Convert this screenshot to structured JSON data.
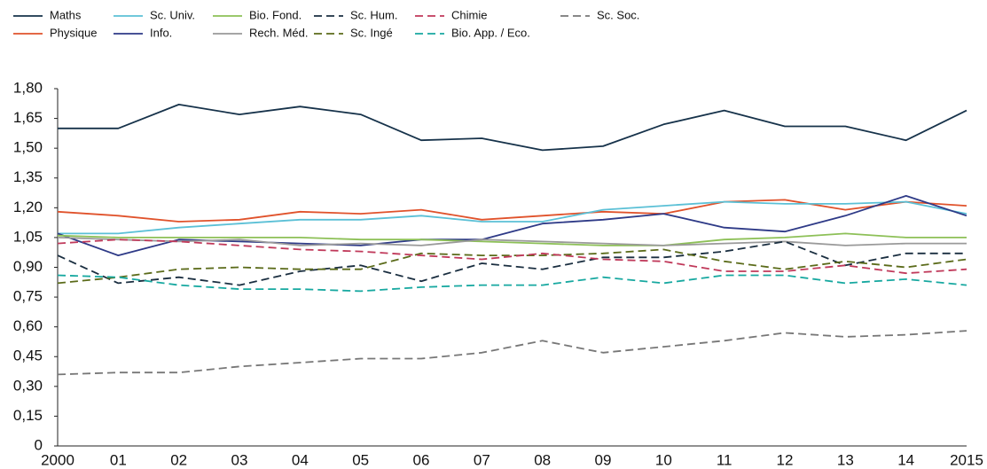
{
  "chart_data": {
    "type": "line",
    "categories": [
      "2000",
      "01",
      "02",
      "03",
      "04",
      "05",
      "06",
      "07",
      "08",
      "09",
      "10",
      "11",
      "12",
      "13",
      "14",
      "2015"
    ],
    "ylim": [
      0,
      1.8
    ],
    "yticks": [
      0,
      {
        "value": 0.15,
        "label": "0,15"
      },
      {
        "value": 0.3,
        "label": "0,30"
      },
      {
        "value": 0.45,
        "label": "0,45"
      },
      {
        "value": 0.6,
        "label": "0,60"
      },
      {
        "value": 0.75,
        "label": "0,75"
      },
      {
        "value": 0.9,
        "label": "0,90"
      },
      {
        "value": 1.05,
        "label": "1,05"
      },
      {
        "value": 1.2,
        "label": "1,20"
      },
      {
        "value": 1.35,
        "label": "1,35"
      },
      {
        "value": 1.5,
        "label": "1,50"
      },
      {
        "value": 1.65,
        "label": "1,65"
      },
      {
        "value": 1.8,
        "label": "1,80"
      }
    ],
    "grid": false,
    "legend": "top",
    "series": [
      {
        "name": "Maths",
        "color": "#16324a",
        "dash": false,
        "values": [
          1.6,
          1.6,
          1.72,
          1.67,
          1.71,
          1.67,
          1.54,
          1.55,
          1.49,
          1.51,
          1.62,
          1.69,
          1.61,
          1.61,
          1.54,
          1.69
        ]
      },
      {
        "name": "Physique",
        "color": "#e0522b",
        "dash": false,
        "values": [
          1.18,
          1.16,
          1.13,
          1.14,
          1.18,
          1.17,
          1.19,
          1.14,
          1.16,
          1.18,
          1.17,
          1.23,
          1.24,
          1.19,
          1.23,
          1.21
        ]
      },
      {
        "name": "Sc. Univ.",
        "color": "#5bc0d6",
        "dash": false,
        "values": [
          1.07,
          1.07,
          1.1,
          1.12,
          1.14,
          1.14,
          1.16,
          1.13,
          1.13,
          1.19,
          1.21,
          1.23,
          1.22,
          1.22,
          1.23,
          1.17
        ]
      },
      {
        "name": "Info.",
        "color": "#2e3a87",
        "dash": false,
        "values": [
          1.07,
          0.96,
          1.04,
          1.03,
          1.02,
          1.01,
          1.04,
          1.04,
          1.12,
          1.14,
          1.17,
          1.1,
          1.08,
          1.16,
          1.26,
          1.16
        ]
      },
      {
        "name": "Bio. Fond.",
        "color": "#8dc057",
        "dash": false,
        "values": [
          1.06,
          1.05,
          1.05,
          1.05,
          1.05,
          1.04,
          1.04,
          1.03,
          1.02,
          1.01,
          1.01,
          1.04,
          1.05,
          1.07,
          1.05,
          1.05
        ]
      },
      {
        "name": "Rech. Méd.",
        "color": "#9a9a9a",
        "dash": false,
        "values": [
          1.05,
          1.04,
          1.03,
          1.04,
          1.01,
          1.02,
          1.01,
          1.04,
          1.03,
          1.02,
          1.01,
          1.02,
          1.03,
          1.01,
          1.02,
          1.02
        ]
      },
      {
        "name": "Sc. Hum.",
        "color": "#1a2e40",
        "dash": true,
        "values": [
          0.96,
          0.82,
          0.85,
          0.81,
          0.88,
          0.91,
          0.83,
          0.92,
          0.89,
          0.95,
          0.95,
          0.98,
          1.03,
          0.91,
          0.97,
          0.97
        ]
      },
      {
        "name": "Sc. Ingé",
        "color": "#5b6b1a",
        "dash": true,
        "values": [
          0.82,
          0.85,
          0.89,
          0.9,
          0.89,
          0.89,
          0.97,
          0.96,
          0.96,
          0.97,
          0.99,
          0.93,
          0.89,
          0.93,
          0.9,
          0.94
        ]
      },
      {
        "name": "Chimie",
        "color": "#c0395a",
        "dash": true,
        "values": [
          1.02,
          1.04,
          1.03,
          1.01,
          0.99,
          0.98,
          0.96,
          0.94,
          0.97,
          0.94,
          0.93,
          0.88,
          0.88,
          0.91,
          0.87,
          0.89
        ]
      },
      {
        "name": "Bio. App. / Eco.",
        "color": "#17a8a0",
        "dash": true,
        "values": [
          0.86,
          0.85,
          0.81,
          0.79,
          0.79,
          0.78,
          0.8,
          0.81,
          0.81,
          0.85,
          0.82,
          0.86,
          0.86,
          0.82,
          0.84,
          0.81
        ]
      },
      {
        "name": "Sc. Soc.",
        "color": "#777777",
        "dash": true,
        "values": [
          0.36,
          0.37,
          0.37,
          0.4,
          0.42,
          0.44,
          0.44,
          0.47,
          0.53,
          0.47,
          0.5,
          0.53,
          0.57,
          0.55,
          0.56,
          0.58
        ]
      }
    ]
  }
}
